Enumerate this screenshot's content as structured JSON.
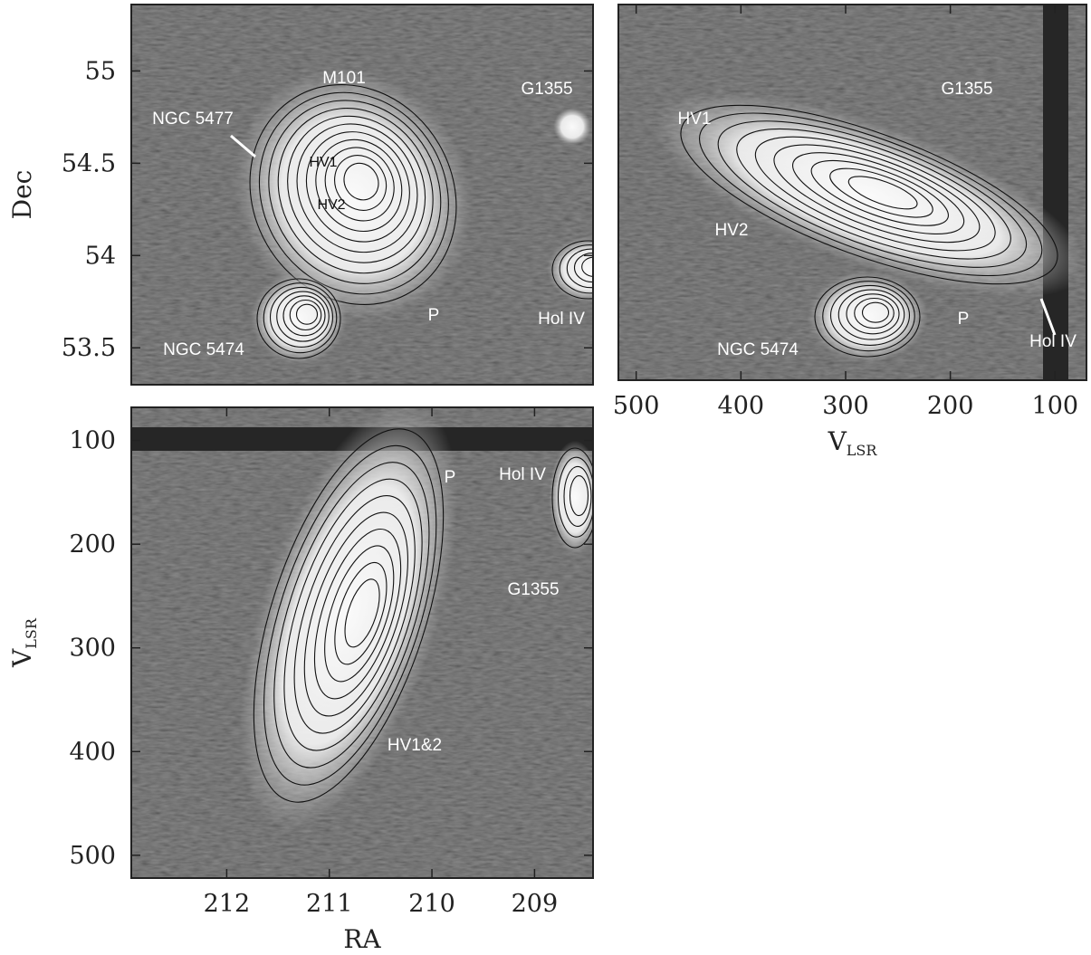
{
  "chart_data": [
    {
      "type": "image",
      "ylabel": "Dec",
      "ylim": [
        53.3,
        55.36
      ],
      "yticks": [
        53.5,
        54,
        54.5,
        55
      ],
      "annotations": [
        "M101",
        "NGC 5477",
        "HV1",
        "HV2",
        "G1355",
        "P",
        "Hol IV",
        "NGC 5474"
      ]
    },
    {
      "type": "image",
      "xlabel": "V",
      "xlabel_sub": "LSR",
      "xlim": [
        517,
        70
      ],
      "xticks": [
        500,
        400,
        300,
        200,
        100
      ],
      "annotations": [
        "HV1",
        "G1355",
        "HV2",
        "P",
        "NGC 5474",
        "Hol IV"
      ]
    },
    {
      "type": "image",
      "xlabel": "RA",
      "ylabel": "V",
      "ylabel_sub": "LSR",
      "xlim": [
        212.93,
        208.43
      ],
      "xticks": [
        212,
        211,
        210,
        209
      ],
      "ylim": [
        522,
        68
      ],
      "yticks": [
        100,
        200,
        300,
        400,
        500
      ],
      "annotations": [
        "P",
        "Hol IV",
        "G1355",
        "HV1&2"
      ]
    }
  ]
}
